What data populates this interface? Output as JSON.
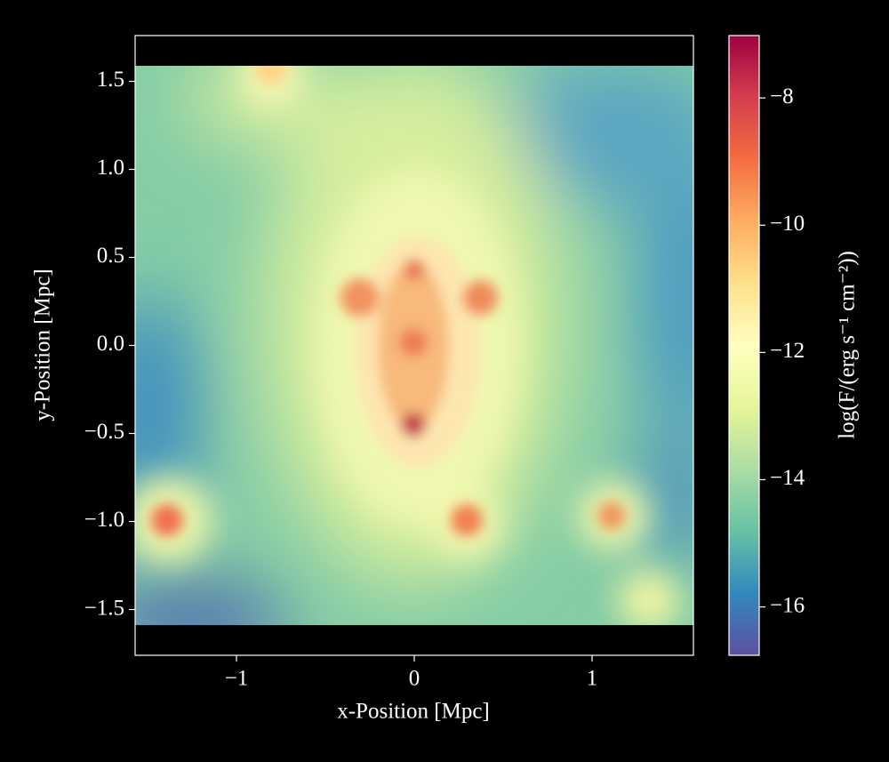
{
  "chart_data": {
    "type": "image",
    "xlabel": "x-Position [Mpc]",
    "ylabel": "y-Position [Mpc]",
    "colorbar_label": "log(F/(erg s⁻¹ cm⁻²))",
    "xlim": [
      -1.57,
      1.57
    ],
    "ylim": [
      -1.76,
      1.76
    ],
    "xticks": [
      {
        "value": -1,
        "label": "−1"
      },
      0,
      1
    ],
    "yticks": [
      1.5,
      {
        "value": 1,
        "label": "1.0"
      },
      0.5,
      {
        "value": 0,
        "label": "0.0"
      },
      {
        "value": -0.5,
        "label": "−0.5"
      },
      {
        "value": -1,
        "label": "−1.0"
      },
      {
        "value": -1.5,
        "label": "−1.5"
      }
    ],
    "clim": [
      -16.76,
      -7.02
    ],
    "cticks": [
      {
        "value": -8,
        "label": "−8"
      },
      {
        "value": -10,
        "label": "−10"
      },
      {
        "value": -12,
        "label": "−12"
      },
      {
        "value": -14,
        "label": "−14"
      },
      {
        "value": -16,
        "label": "−16"
      }
    ],
    "colorscale": [
      "#5e4fa2",
      "#3288bd",
      "#66c2a5",
      "#abdda4",
      "#e6f598",
      "#ffffbf",
      "#fee08b",
      "#fdae61",
      "#f46d43",
      "#d53e4f",
      "#9e0142"
    ]
  }
}
